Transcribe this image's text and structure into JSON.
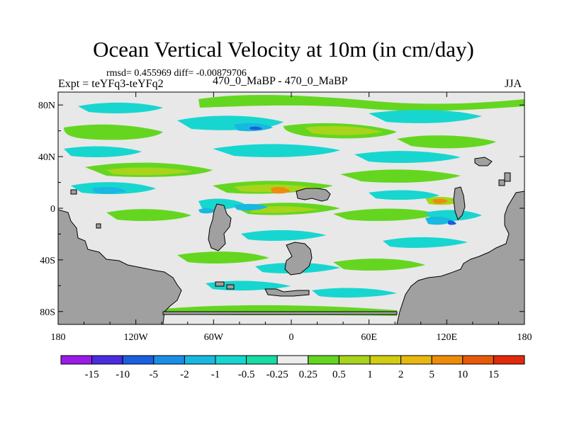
{
  "title": "Ocean Vertical Velocity at 10m (in cm/day)",
  "stats": "rmsd= 0.455969 diff= -0.00879706",
  "experiment": "Expt = teYFq3-teYFq2",
  "subtitle": "470_0_MaBP - 470_0_MaBP",
  "season": "JJA",
  "map": {
    "lon_range": [
      -180,
      180
    ],
    "lat_range": [
      -90,
      90
    ],
    "x_ticks": [
      {
        "lon": -180,
        "label": "180"
      },
      {
        "lon": -120,
        "label": "120W"
      },
      {
        "lon": -60,
        "label": "60W"
      },
      {
        "lon": 0,
        "label": "0"
      },
      {
        "lon": 60,
        "label": "60E"
      },
      {
        "lon": 120,
        "label": "120E"
      },
      {
        "lon": 180,
        "label": "180"
      }
    ],
    "y_ticks": [
      {
        "lat": 80,
        "label": "80N"
      },
      {
        "lat": 40,
        "label": "40N"
      },
      {
        "lat": 0,
        "label": "0"
      },
      {
        "lat": -40,
        "label": "40S"
      },
      {
        "lat": -80,
        "label": "80S"
      }
    ],
    "land_color": "#a0a0a0",
    "neutral_color": "#e8e8e8"
  },
  "colorbar": {
    "labels": [
      "-15",
      "-10",
      "-5",
      "-2",
      "-1",
      "-0.5",
      "-0.25",
      "0.25",
      "0.5",
      "1",
      "2",
      "5",
      "10",
      "15"
    ],
    "colors": [
      "#9a1be6",
      "#4a2be0",
      "#1a5fe0",
      "#1a8ee6",
      "#18b8e0",
      "#17d6d0",
      "#17dca4",
      "#ececec",
      "#64d620",
      "#a8d41c",
      "#d2cc12",
      "#e8b810",
      "#ee8c0a",
      "#e85a0a",
      "#e02a0a"
    ]
  }
}
